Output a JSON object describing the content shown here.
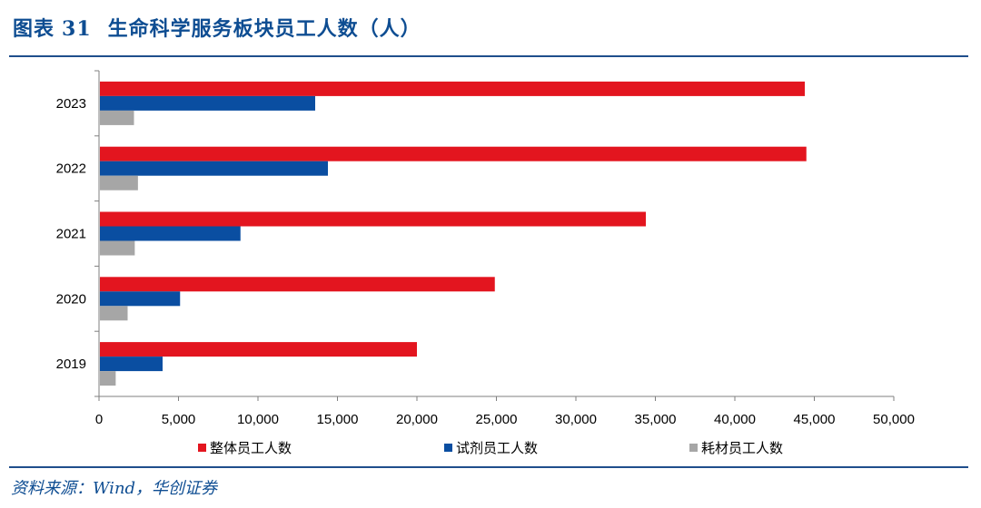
{
  "figure": {
    "label": "图表",
    "number": "31",
    "title": "生命科学服务板块员工人数（人）"
  },
  "source": "资料来源：Wind，华创证券",
  "chart_data": {
    "type": "bar",
    "orientation": "horizontal",
    "categories": [
      "2023",
      "2022",
      "2021",
      "2020",
      "2019"
    ],
    "series": [
      {
        "name": "整体员工人数",
        "color": "#e3151f",
        "values": [
          44400,
          44500,
          34400,
          24900,
          20000
        ]
      },
      {
        "name": "试剂员工人数",
        "color": "#0a4ea1",
        "values": [
          13600,
          14400,
          8900,
          5100,
          4000
        ]
      },
      {
        "name": "耗材员工人数",
        "color": "#a6a6a6",
        "values": [
          2200,
          2450,
          2250,
          1800,
          1050
        ]
      }
    ],
    "x_ticks": [
      "0",
      "5,000",
      "10,000",
      "15,000",
      "20,000",
      "25,000",
      "30,000",
      "35,000",
      "40,000",
      "45,000",
      "50,000"
    ],
    "xlim": [
      0,
      50000
    ],
    "grid": false,
    "legend_position": "bottom"
  }
}
